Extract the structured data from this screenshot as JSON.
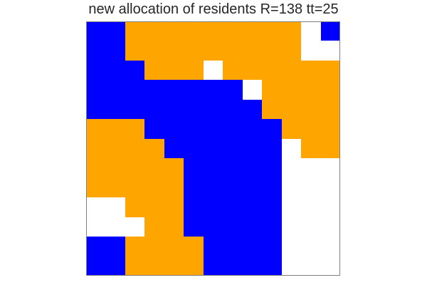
{
  "chart_data": {
    "type": "heatmap",
    "title": "new allocation of residents R=138 tt=25",
    "legend": "none",
    "grid": false,
    "colors": {
      "0": "#ffffff",
      "1": "#0000ff",
      "2": "#ffa500"
    },
    "value_labels": {
      "0": "empty",
      "1": "blue resident",
      "2": "orange resident"
    },
    "rows": 13,
    "cols": 13,
    "values": [
      [
        1,
        1,
        2,
        2,
        2,
        2,
        2,
        2,
        2,
        2,
        2,
        0,
        1
      ],
      [
        1,
        1,
        2,
        2,
        2,
        2,
        2,
        2,
        2,
        2,
        2,
        0,
        0
      ],
      [
        1,
        1,
        1,
        2,
        2,
        2,
        0,
        2,
        2,
        2,
        2,
        2,
        2
      ],
      [
        1,
        1,
        1,
        1,
        1,
        1,
        1,
        1,
        0,
        2,
        2,
        2,
        2
      ],
      [
        1,
        1,
        1,
        1,
        1,
        1,
        1,
        1,
        1,
        2,
        2,
        2,
        2
      ],
      [
        2,
        2,
        2,
        1,
        1,
        1,
        1,
        1,
        1,
        1,
        2,
        2,
        2
      ],
      [
        2,
        2,
        2,
        2,
        1,
        1,
        1,
        1,
        1,
        1,
        0,
        2,
        2
      ],
      [
        2,
        2,
        2,
        2,
        2,
        1,
        1,
        1,
        1,
        1,
        0,
        0,
        0
      ],
      [
        2,
        2,
        2,
        2,
        2,
        1,
        1,
        1,
        1,
        1,
        0,
        0,
        0
      ],
      [
        0,
        0,
        2,
        2,
        2,
        1,
        1,
        1,
        1,
        1,
        0,
        0,
        0
      ],
      [
        0,
        0,
        0,
        2,
        2,
        1,
        1,
        1,
        1,
        1,
        0,
        0,
        0
      ],
      [
        1,
        1,
        2,
        2,
        2,
        2,
        1,
        1,
        1,
        1,
        0,
        0,
        0
      ],
      [
        1,
        1,
        2,
        2,
        2,
        2,
        1,
        1,
        1,
        1,
        0,
        0,
        0
      ]
    ]
  }
}
